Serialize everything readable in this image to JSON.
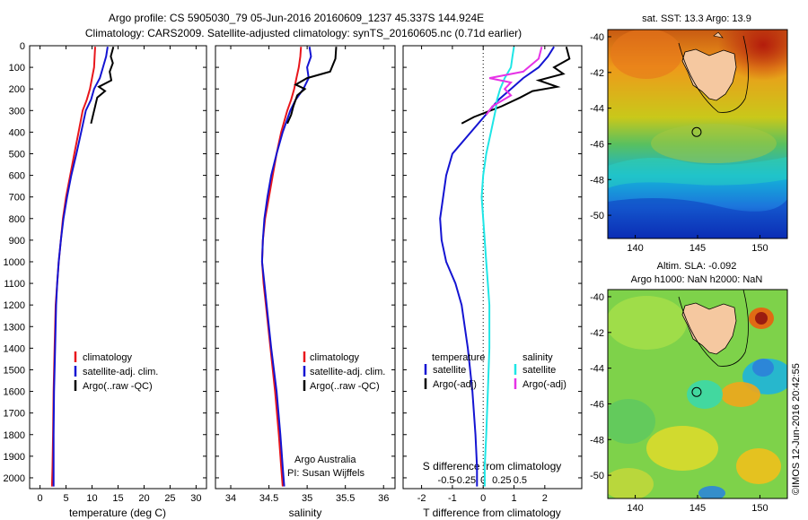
{
  "header": {
    "line1": "Argo profile: CS 5905030_79 05-Jun-2016 20160609_1237 45.337S 144.924E",
    "line2": "Climatology: CARS2009. Satellite-adjusted climatology: synTS_20160605.nc (0.71d earlier)"
  },
  "side_stamp": "©IMOS 12-Jun-2016 20:42:55",
  "chart_data": [
    {
      "id": "temperature",
      "type": "line",
      "xlabel": "temperature (deg C)",
      "xlim": [
        -2,
        32
      ],
      "xticks": [
        0,
        5,
        10,
        15,
        20,
        25,
        30
      ],
      "ylim": [
        0,
        2050
      ],
      "yticks": [
        0,
        100,
        200,
        300,
        400,
        500,
        600,
        700,
        800,
        900,
        1000,
        1100,
        1200,
        1300,
        1400,
        1500,
        1600,
        1700,
        1800,
        1900,
        2000
      ],
      "legend": [
        "climatology",
        "satellite-adj. clim.",
        "Argo(..raw -QC)"
      ],
      "series": [
        {
          "name": "climatology",
          "color": "#e8161c",
          "x": [
            10.6,
            10.5,
            10.4,
            10.0,
            9.6,
            9.0,
            8.2,
            7.4,
            6.6,
            5.8,
            5.0,
            4.4,
            4.0,
            3.6,
            3.3,
            3.0,
            2.8,
            2.6,
            2.5,
            2.4,
            2.3
          ],
          "y": [
            5,
            50,
            100,
            150,
            200,
            250,
            300,
            400,
            500,
            600,
            700,
            800,
            900,
            1000,
            1100,
            1200,
            1400,
            1600,
            1800,
            1950,
            2040
          ]
        },
        {
          "name": "satellite-adj. clim.",
          "color": "#1414d2",
          "x": [
            13.0,
            12.7,
            12.1,
            11.5,
            10.4,
            9.8,
            8.8,
            7.9,
            7.0,
            6.0,
            5.2,
            4.5,
            4.0,
            3.6,
            3.3,
            3.1,
            2.9,
            2.7,
            2.6,
            2.6
          ],
          "y": [
            5,
            50,
            100,
            150,
            200,
            250,
            300,
            400,
            500,
            600,
            700,
            800,
            900,
            1000,
            1100,
            1200,
            1400,
            1600,
            1800,
            2040
          ]
        },
        {
          "name": "Argo(..raw -QC)",
          "color": "#000000",
          "x": [
            14.1,
            13.6,
            14.0,
            13.4,
            13.7,
            11.3,
            12.5,
            11.0,
            10.6,
            10.2,
            9.8
          ],
          "y": [
            5,
            50,
            80,
            120,
            160,
            190,
            210,
            240,
            280,
            320,
            360
          ]
        }
      ]
    },
    {
      "id": "salinity",
      "type": "line",
      "xlabel": "salinity",
      "xlim": [
        33.8,
        36.15
      ],
      "xticks": [
        34,
        34.5,
        35,
        35.5,
        36
      ],
      "ylim": [
        0,
        2050
      ],
      "legend": [
        "climatology",
        "satellite-adj. clim.",
        "Argo(..raw -QC)"
      ],
      "annotation": [
        "Argo Australia",
        "PI: Susan Wijffels"
      ],
      "series": [
        {
          "name": "climatology",
          "color": "#e8161c",
          "x": [
            34.92,
            34.91,
            34.89,
            34.86,
            34.83,
            34.79,
            34.74,
            34.66,
            34.6,
            34.55,
            34.5,
            34.45,
            34.42,
            34.41,
            34.43,
            34.46,
            34.52,
            34.58,
            34.63,
            34.66,
            34.68
          ],
          "y": [
            5,
            50,
            100,
            150,
            200,
            250,
            300,
            400,
            500,
            600,
            700,
            800,
            900,
            1000,
            1100,
            1200,
            1400,
            1600,
            1800,
            1950,
            2040
          ]
        },
        {
          "name": "satellite-adj. clim.",
          "color": "#1414d2",
          "x": [
            35.03,
            35.05,
            35.0,
            35.02,
            34.95,
            34.85,
            34.78,
            34.68,
            34.6,
            34.53,
            34.48,
            34.44,
            34.42,
            34.41,
            34.44,
            34.47,
            34.53,
            34.6,
            34.65,
            34.68,
            34.7
          ],
          "y": [
            5,
            50,
            100,
            150,
            200,
            250,
            300,
            400,
            500,
            600,
            700,
            800,
            900,
            1000,
            1100,
            1200,
            1400,
            1600,
            1800,
            1950,
            2040
          ]
        },
        {
          "name": "Argo(..raw -QC)",
          "color": "#000000",
          "x": [
            35.38,
            35.37,
            35.3,
            35.0,
            34.85,
            34.97,
            34.87,
            34.82,
            34.79,
            34.74
          ],
          "y": [
            5,
            60,
            120,
            150,
            180,
            200,
            230,
            280,
            320,
            360
          ]
        }
      ]
    },
    {
      "id": "difference",
      "type": "line",
      "xlabel": "T difference from climatology",
      "xlabel_top": "S difference from climatology",
      "xlim": [
        -2.6,
        3.2
      ],
      "xticks": [
        -2,
        -1,
        0,
        1,
        2
      ],
      "xticks_top": [
        -0.5,
        -0.25,
        0,
        0.25,
        0.5
      ],
      "ylim": [
        0,
        2050
      ],
      "legend_left_title": "temperature",
      "legend_right_title": "salinity",
      "legend_left": [
        "satellite",
        "Argo(-adj)"
      ],
      "legend_right": [
        "satellite",
        "Argo(-adj)"
      ],
      "series": [
        {
          "name": "T satellite",
          "color": "#1414d2",
          "x": [
            2.3,
            2.1,
            1.8,
            1.3,
            0.9,
            0.5,
            0.2,
            -0.4,
            -1.0,
            -1.2,
            -1.3,
            -1.4,
            -1.35,
            -1.2,
            -0.9,
            -0.7,
            -0.5,
            -0.35,
            -0.25,
            -0.2,
            -0.2
          ],
          "y": [
            5,
            50,
            100,
            150,
            200,
            250,
            300,
            400,
            500,
            600,
            700,
            800,
            900,
            1000,
            1100,
            1200,
            1400,
            1600,
            1800,
            1950,
            2040
          ]
        },
        {
          "name": "T Argo(-adj)",
          "color": "#000000",
          "x": [
            2.7,
            2.8,
            2.3,
            2.6,
            1.8,
            2.4,
            1.6,
            1.2,
            0.6,
            -0.3,
            -0.7
          ],
          "y": [
            5,
            60,
            100,
            130,
            160,
            190,
            210,
            240,
            280,
            330,
            360
          ]
        },
        {
          "name": "S satellite",
          "color": "#1ee6e6",
          "x": [
            1.0,
            0.95,
            0.9,
            0.7,
            0.55,
            0.45,
            0.4,
            0.25,
            0.1,
            0.0,
            -0.05,
            0.0,
            0.05,
            0.1,
            0.15,
            0.2,
            0.2,
            0.15,
            0.1,
            0.05,
            0.05
          ],
          "y": [
            5,
            50,
            100,
            150,
            200,
            250,
            300,
            400,
            500,
            600,
            700,
            800,
            900,
            1000,
            1100,
            1200,
            1400,
            1600,
            1800,
            1950,
            2040
          ]
        },
        {
          "name": "S Argo(-adj)",
          "color": "#e632e6",
          "x": [
            1.9,
            1.8,
            1.3,
            0.2,
            0.9,
            0.7,
            0.9,
            0.3,
            0.1
          ],
          "y": [
            5,
            60,
            120,
            150,
            170,
            200,
            230,
            280,
            320
          ]
        }
      ]
    },
    {
      "id": "sst_map",
      "type": "heatmap",
      "title": "sat. SST: 13.3 Argo: 13.9",
      "xticks": [
        140,
        145,
        150
      ],
      "yticks": [
        -40,
        -42,
        -44,
        -46,
        -48,
        -50
      ],
      "xlim": [
        137.8,
        152.2
      ],
      "ylim": [
        -51.3,
        -39.6
      ],
      "marker": {
        "lon": 144.924,
        "lat": -45.337
      }
    },
    {
      "id": "sla_map",
      "type": "heatmap",
      "title": "Altim. SLA: -0.092",
      "subtitle": "Argo h1000: NaN h2000: NaN",
      "xticks": [
        140,
        145,
        150
      ],
      "yticks": [
        -40,
        -42,
        -44,
        -46,
        -48,
        -50
      ],
      "xlim": [
        137.8,
        152.2
      ],
      "ylim": [
        -51.3,
        -39.6
      ],
      "marker": {
        "lon": 144.924,
        "lat": -45.337
      }
    }
  ]
}
